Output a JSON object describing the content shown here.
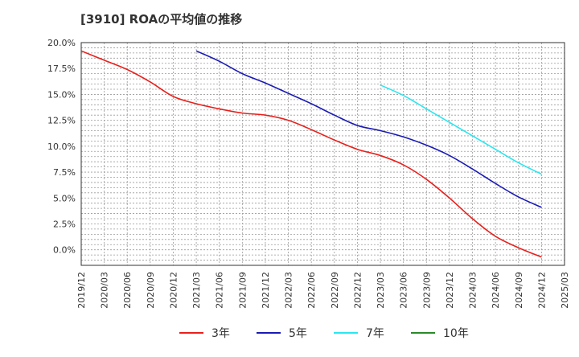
{
  "chart_data": {
    "type": "line",
    "title": "[3910]  ROAの平均値の推移",
    "xlabel": "",
    "ylabel": "",
    "ylim": [
      -1.5,
      20.0
    ],
    "yticks": [
      0.0,
      2.5,
      5.0,
      7.5,
      10.0,
      12.5,
      15.0,
      17.5,
      20.0
    ],
    "ytick_labels": [
      "0.0%",
      "2.5%",
      "5.0%",
      "7.5%",
      "10.0%",
      "12.5%",
      "15.0%",
      "17.5%",
      "20.0%"
    ],
    "x_categories": [
      "2019/12",
      "2020/03",
      "2020/06",
      "2020/09",
      "2020/12",
      "2021/03",
      "2021/06",
      "2021/09",
      "2021/12",
      "2022/03",
      "2022/06",
      "2022/09",
      "2022/12",
      "2023/03",
      "2023/06",
      "2023/09",
      "2023/12",
      "2024/03",
      "2024/06",
      "2024/09",
      "2024/12",
      "2025/03"
    ],
    "grid": true,
    "legend_position": "bottom",
    "series": [
      {
        "name": "3年",
        "color": "#e8201c",
        "x": [
          "2019/12",
          "2020/03",
          "2020/06",
          "2020/09",
          "2020/12",
          "2021/03",
          "2021/06",
          "2021/09",
          "2021/12",
          "2022/03",
          "2022/06",
          "2022/09",
          "2022/12",
          "2023/03",
          "2023/06",
          "2023/09",
          "2023/12",
          "2024/03",
          "2024/06",
          "2024/09",
          "2024/12"
        ],
        "values": [
          19.2,
          18.3,
          17.4,
          16.2,
          14.8,
          14.1,
          13.6,
          13.2,
          13.0,
          12.5,
          11.6,
          10.6,
          9.7,
          9.1,
          8.2,
          6.8,
          5.0,
          3.0,
          1.3,
          0.2,
          -0.7
        ]
      },
      {
        "name": "5年",
        "color": "#1a1ab5",
        "x": [
          "2021/03",
          "2021/06",
          "2021/09",
          "2021/12",
          "2022/03",
          "2022/06",
          "2022/09",
          "2022/12",
          "2023/03",
          "2023/06",
          "2023/09",
          "2023/12",
          "2024/03",
          "2024/06",
          "2024/09",
          "2024/12"
        ],
        "values": [
          19.2,
          18.2,
          17.0,
          16.1,
          15.1,
          14.1,
          13.0,
          12.0,
          11.5,
          10.9,
          10.1,
          9.1,
          7.8,
          6.4,
          5.1,
          4.1
        ]
      },
      {
        "name": "7年",
        "color": "#29e6f0",
        "x": [
          "2023/03",
          "2023/06",
          "2023/09",
          "2023/12",
          "2024/03",
          "2024/06",
          "2024/09",
          "2024/12"
        ],
        "values": [
          15.9,
          14.9,
          13.6,
          12.3,
          11.0,
          9.7,
          8.4,
          7.3
        ]
      },
      {
        "name": "10年",
        "color": "#2a8a2a",
        "x": [],
        "values": []
      }
    ]
  }
}
